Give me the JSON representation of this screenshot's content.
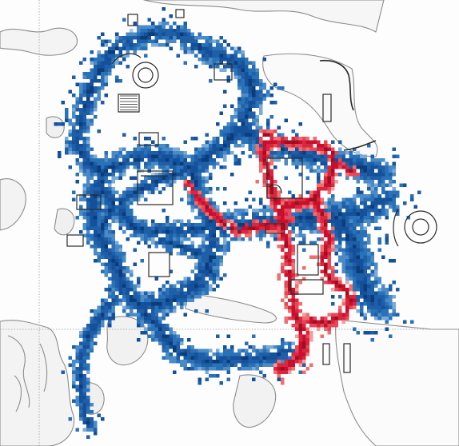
{
  "map": {
    "kind": "top-down level heatmap",
    "colors": {
      "background": "#fdfdfd",
      "terrain_stroke": "#8c8c8c",
      "terrain_fill": "#f0f0f0",
      "gridline": "#9a9a9a",
      "team_a": "#1f5fa8",
      "team_a_light": "#5f9bd0",
      "team_b": "#c8102e",
      "team_b_light": "#ef6f6f"
    },
    "legend": [],
    "labels": []
  }
}
